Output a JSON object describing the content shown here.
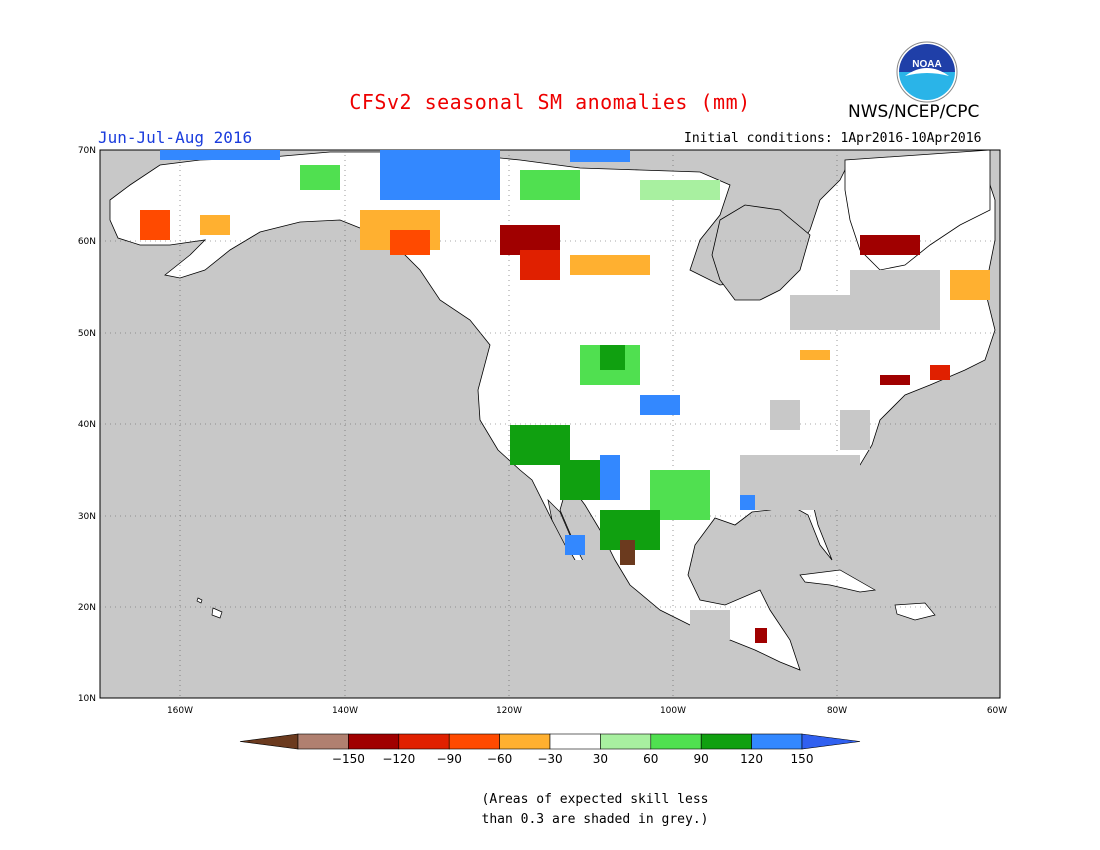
{
  "title": "CFSv2 seasonal SM anomalies (mm)",
  "agency": "NWS/NCEP/CPC",
  "season": "Jun-Jul-Aug 2016",
  "initial_conditions": "Initial conditions: 1Apr2016-10Apr2016",
  "logo": {
    "text": "NOAA",
    "icon": "noaa-logo-icon"
  },
  "map": {
    "lon_labels": [
      "160W",
      "140W",
      "120W",
      "100W",
      "80W",
      "60W"
    ],
    "lat_labels": [
      "70N",
      "60N",
      "50N",
      "40N",
      "30N",
      "20N",
      "10N"
    ],
    "land_color": "#ffffff",
    "low_skill_color": "#c8c8c8"
  },
  "colorbar": {
    "ticks": [
      "-150",
      "-120",
      "-90",
      "-60",
      "-30",
      "30",
      "60",
      "90",
      "120",
      "150"
    ],
    "colors": [
      "#6b3a1e",
      "#b08070",
      "#a00000",
      "#e02000",
      "#ff4a00",
      "#ffb030",
      "#ffffff",
      "#a8f0a0",
      "#50e050",
      "#10a010",
      "#3388ff",
      "#3060f0"
    ]
  },
  "note": {
    "line1": "(Areas of expected skill less",
    "line2": "than 0.3 are shaded in grey.)"
  }
}
